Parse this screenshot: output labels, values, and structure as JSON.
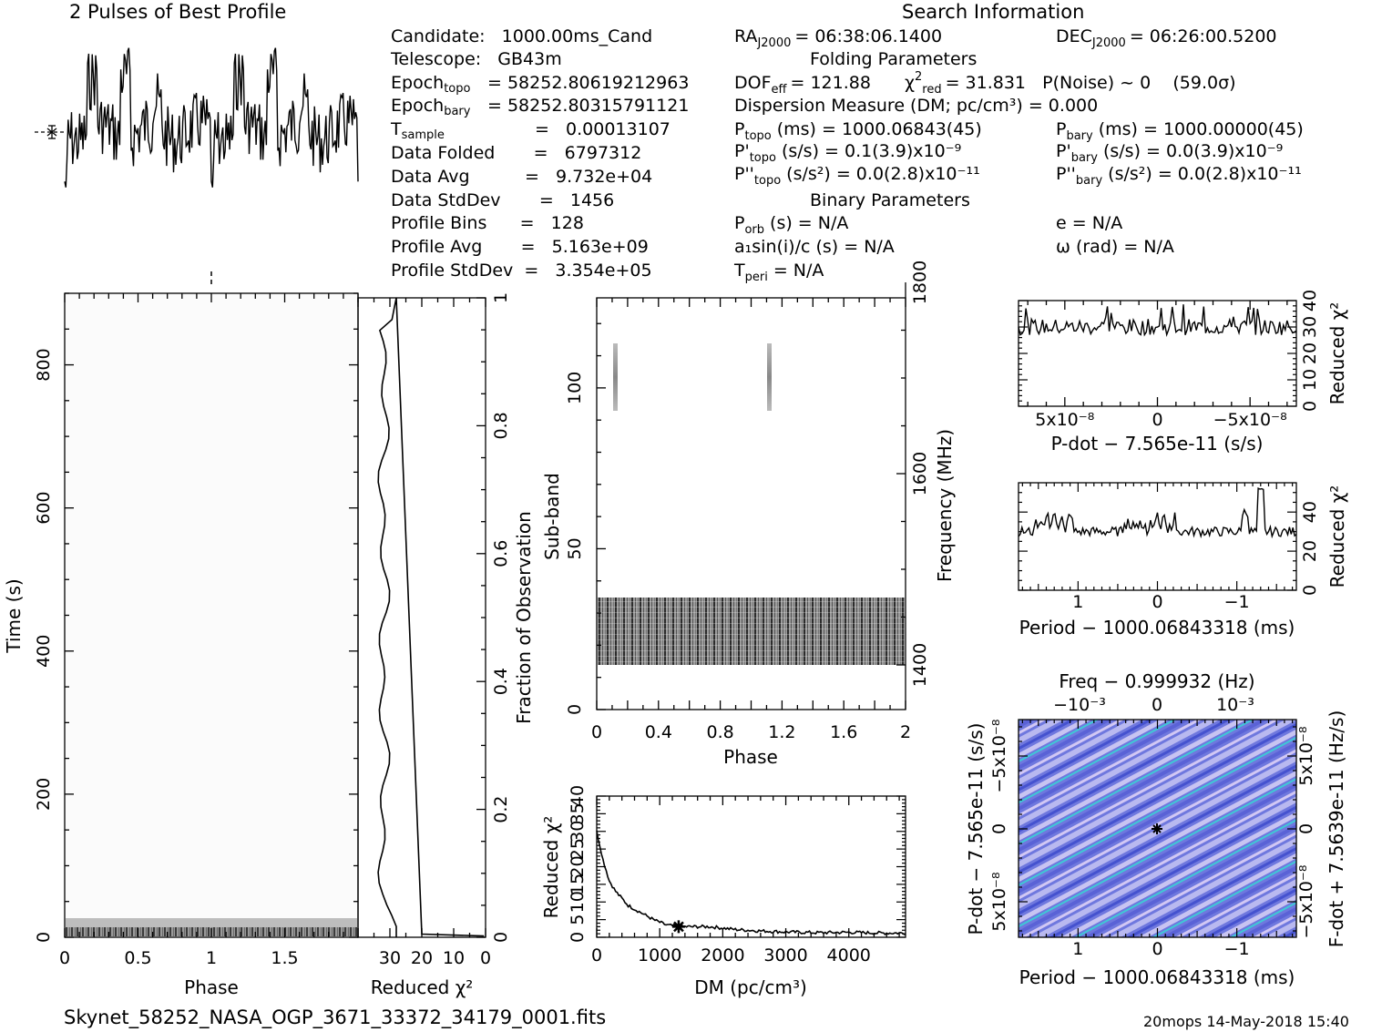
{
  "header": {
    "profile_title": "2 Pulses of Best Profile",
    "search_title": "Search Information"
  },
  "info": {
    "candidate": "Candidate:   1000.00ms_Cand",
    "telescope": "Telescope:   GB43m",
    "epoch_topo_lbl": "Epoch",
    "epoch_topo_sub": "topo",
    "epoch_topo_val": "= 58252.80619212963",
    "epoch_bary_lbl": "Epoch",
    "epoch_bary_sub": "bary",
    "epoch_bary_val": "= 58252.80315791121",
    "tsample_lbl": "T",
    "tsample_sub": "sample",
    "tsample_val": "=   0.00013107",
    "data_folded": "Data Folded       =   6797312",
    "data_avg": "Data Avg          =   9.732e+04",
    "data_stddev": "Data StdDev       =   1456",
    "profile_bins": "Profile Bins      =   128",
    "profile_avg": "Profile Avg       =   5.163e+09",
    "profile_stddev": "Profile StdDev  =   3.354e+05",
    "ra": "= 06:38:06.1400",
    "dec": "= 06:26:00.5200",
    "folding_title": "Folding Parameters",
    "dof": "= 121.88",
    "chi2": "= 31.831   P(Noise) ~ 0    (59.0σ)",
    "dm_line": "Dispersion Measure (DM; pc/cm³) = 0.000",
    "ptopo": "(ms) =   1000.06843(45)",
    "pbary": "(ms) =   1000.00000(45)",
    "pdtopo": "(s/s) =   0.1(3.9)x10⁻⁹",
    "pdbary": "(s/s) = 0.0(3.9)x10⁻⁹",
    "pddtopo": "(s/s²) = 0.0(2.8)x10⁻¹¹",
    "pddbary": "(s/s²) = 0.0(2.8)x10⁻¹¹",
    "binary_title": "Binary Parameters",
    "porb": "(s) = N/A",
    "ecc": "e = N/A",
    "a1sini": "a₁sin(i)/c (s) = N/A",
    "omega": "ω (rad) = N/A",
    "tperi": "= N/A"
  },
  "axes": {
    "phase": "Phase",
    "time": "Time (s)",
    "reduced_chi2": "Reduced χ²",
    "fraction": "Fraction of Observation",
    "subband": "Sub-band",
    "frequency": "Frequency (MHz)",
    "dm": "DM (pc/cm³)",
    "pdot": "P-dot − 7.565e-11 (s/s)",
    "period": "Period − 1000.06843318 (ms)",
    "freq_top": "Freq − 0.999932 (Hz)",
    "pdot_left": "P-dot − 7.565e-11 (s/s)",
    "fdot_right": "F-dot + 7.5639e-11 (Hz/s)"
  },
  "footer": {
    "filename": "Skynet_58252_NASA_OGP_3671_33372_34179_0001.fits",
    "stamp": "20mops 14-May-2018 15:40"
  },
  "chart_data": [
    {
      "type": "line",
      "title": "2 Pulses of Best Profile",
      "xlabel": "Phase",
      "x": [
        0,
        0.1,
        0.2,
        0.3,
        0.4,
        0.5,
        0.6,
        0.7,
        0.8,
        0.9,
        1.0,
        1.1,
        1.2,
        1.3,
        1.4,
        1.5,
        1.6,
        1.7,
        1.8,
        1.9,
        2.0
      ],
      "y_relative": [
        -1.1,
        0.3,
        -0.1,
        0.4,
        0.9,
        0.2,
        0.1,
        0.0,
        0.2,
        0.3,
        -1.1,
        0.3,
        -0.1,
        0.4,
        0.9,
        0.2,
        0.1,
        0.0,
        0.2,
        0.3,
        -1.1
      ],
      "xlim": [
        0,
        2
      ]
    },
    {
      "type": "heatmap",
      "xlabel": "Phase",
      "ylabel": "Time (s)",
      "xlim": [
        0,
        2
      ],
      "ylim": [
        0,
        900
      ],
      "xticks": [
        "0",
        "0.5",
        "1",
        "1.5"
      ],
      "yticks": [
        "0",
        "200",
        "400",
        "600",
        "800"
      ],
      "note_region_time": [
        0,
        30
      ]
    },
    {
      "type": "line",
      "xlabel": "Reduced χ²",
      "ylabel": "Fraction of Observation",
      "xlim": [
        0,
        40
      ],
      "ylim": [
        0,
        1
      ],
      "xticks": [
        "30",
        "20",
        "10",
        "0"
      ],
      "yticks": [
        "0",
        "0.2",
        "0.4",
        "0.6",
        "0.8",
        "1"
      ],
      "fraction": [
        0.0,
        0.03,
        0.05,
        0.1,
        0.2,
        0.3,
        0.4,
        0.5,
        0.6,
        0.7,
        0.8,
        0.9,
        0.95,
        1.0
      ],
      "chi2": [
        29,
        28,
        31,
        32,
        32,
        32,
        32,
        32,
        32,
        32,
        31,
        32,
        30,
        29
      ]
    },
    {
      "type": "heatmap",
      "xlabel": "Phase",
      "ylabel": "Sub-band",
      "y2label": "Frequency (MHz)",
      "xlim": [
        0,
        2
      ],
      "ylim": [
        0,
        128
      ],
      "xticks": [
        "0",
        "0.4",
        "0.8",
        "1.2",
        "1.6",
        "2"
      ],
      "yticks": [
        "0",
        "50",
        "100"
      ],
      "y2ticks": [
        "1400",
        "1600",
        "1800"
      ],
      "dark_band_subbands": [
        14,
        35
      ],
      "streak_subbands": [
        93,
        114
      ],
      "streak_phases": [
        0.11,
        1.11
      ]
    },
    {
      "type": "line",
      "xlabel": "DM (pc/cm³)",
      "ylabel": "Reduced χ²",
      "xlim": [
        0,
        4900
      ],
      "ylim": [
        0,
        40
      ],
      "xticks": [
        "0",
        "1000",
        "2000",
        "3000",
        "4000"
      ],
      "yticks": [
        "0",
        "5",
        "10",
        "15",
        "20",
        "25",
        "30",
        "35",
        "40"
      ],
      "x": [
        0,
        100,
        200,
        300,
        400,
        500,
        700,
        900,
        1100,
        1300,
        1500,
        1800,
        2200,
        2600,
        3000,
        3500,
        4000,
        4500,
        4900
      ],
      "y": [
        30,
        22,
        16,
        13,
        11,
        9,
        7,
        5,
        3.5,
        3,
        3,
        3,
        2.2,
        1.8,
        1.5,
        1.3,
        1.4,
        1.2,
        1.2
      ],
      "marker_dm": 1300
    },
    {
      "type": "line",
      "xlabel": "P-dot − 7.565e-11 (s/s)",
      "ylabel": "Reduced χ²",
      "xlim": [
        7.5e-08,
        -7.5e-08
      ],
      "ylim": [
        0,
        40
      ],
      "xticks": [
        "5x10⁻⁸",
        "0",
        "−5x10⁻⁸"
      ],
      "yticks": [
        "0",
        "10",
        "20",
        "30",
        "40"
      ],
      "y_level": 30
    },
    {
      "type": "line",
      "xlabel": "Period − 1000.06843318 (ms)",
      "ylabel": "Reduced χ²",
      "xlim": [
        1.75,
        -1.75
      ],
      "ylim": [
        0,
        55
      ],
      "xticks": [
        "1",
        "0",
        "−1"
      ],
      "yticks": [
        "0",
        "20",
        "40"
      ],
      "y_level": 30,
      "peaks_ms": [
        -1.25
      ]
    },
    {
      "type": "heatmap",
      "xlabel": "Period − 1000.06843318 (ms)",
      "ylabel": "P-dot − 7.565e-11 (s/s)",
      "x2label": "Freq − 0.999932 (Hz)",
      "y2label": "F-dot + 7.5639e-11 (Hz/s)",
      "xticks": [
        "1",
        "0",
        "−1"
      ],
      "yticks": [
        "−5x10⁻⁸",
        "0",
        "5x10⁻⁸"
      ],
      "x2ticks": [
        "−10⁻³",
        "0",
        "10⁻³"
      ],
      "y2ticks": [
        "5x10⁻⁸",
        "0",
        "−5x10⁻⁸"
      ],
      "best": [
        0,
        0
      ]
    }
  ],
  "colors": {
    "ink": "#000000",
    "heat_blue": "#5a64d8",
    "heat_light": "#b4b4ee",
    "heat_cyan": "#3ad0d8"
  }
}
